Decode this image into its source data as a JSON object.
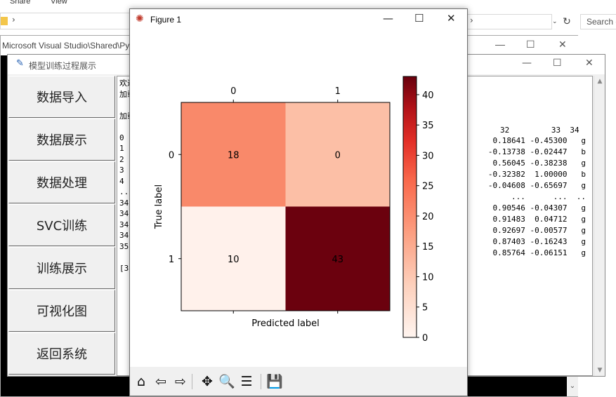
{
  "explorer": {
    "ribbon_tabs": [
      "Share",
      "View"
    ],
    "search_placeholder": "Search c",
    "address_chevron": "›",
    "refresh_icon": "↻",
    "dropdown_icon": "⌄"
  },
  "console": {
    "title": "Microsoft Visual Studio\\Shared\\Pyt",
    "controls": {
      "min": "—",
      "max": "☐",
      "close": "✕"
    },
    "scroll_down": "⌄"
  },
  "tk": {
    "title": "模型训练过程展示",
    "controls": {
      "min": "—",
      "max": "☐",
      "close": "✕"
    },
    "menu": [
      "数据导入",
      "数据展示",
      "数据处理",
      "SVC训练",
      "训练展示",
      "可视化图",
      "返回系统"
    ],
    "text_left": [
      "欢迎",
      "加载",
      "",
      "加载",
      "",
      "0",
      "1",
      "2",
      "3",
      "4",
      "..",
      "34",
      "34",
      "34",
      "34",
      "35",
      "",
      "[3"
    ],
    "text_header": "32         33  34",
    "text_rows": [
      "0.18641 -0.45300   g",
      "-0.13738 -0.02447   b",
      "0.56045 -0.38238   g",
      "-0.32382  1.00000   b",
      "-0.04608 -0.65697   g",
      "...      ...  ..",
      "0.90546 -0.04307   g",
      "0.91483  0.04712   g",
      "0.92697 -0.00577   g",
      "0.87403 -0.16243   g",
      "0.85764 -0.06151   g"
    ]
  },
  "figure": {
    "title": "Figure 1",
    "controls": {
      "min": "—",
      "max": "☐",
      "close": "✕"
    },
    "toolbar": [
      {
        "name": "home-icon",
        "glyph": "⌂"
      },
      {
        "name": "back-icon",
        "glyph": "⇦"
      },
      {
        "name": "forward-icon",
        "glyph": "⇨"
      },
      {
        "name": "pan-icon",
        "glyph": "✥"
      },
      {
        "name": "zoom-icon",
        "glyph": "🔍"
      },
      {
        "name": "configure-subplots-icon",
        "glyph": "☰"
      },
      {
        "name": "save-icon",
        "glyph": "💾"
      }
    ]
  },
  "chart_data": {
    "type": "heatmap",
    "x_categories": [
      "0",
      "1"
    ],
    "y_categories": [
      "0",
      "1"
    ],
    "values": [
      [
        18,
        0
      ],
      [
        10,
        43
      ]
    ],
    "xlabel": "Predicted label",
    "ylabel": "True label",
    "colormap": "Reds",
    "colorbar": {
      "min": 0,
      "max": 43,
      "ticks": [
        0,
        5,
        10,
        15,
        20,
        25,
        30,
        35,
        40
      ]
    },
    "cell_colors": [
      [
        "#f9896a",
        "#fcbfa6"
      ],
      [
        "#fff1eb",
        "#6b010e"
      ]
    ],
    "grid": false
  }
}
